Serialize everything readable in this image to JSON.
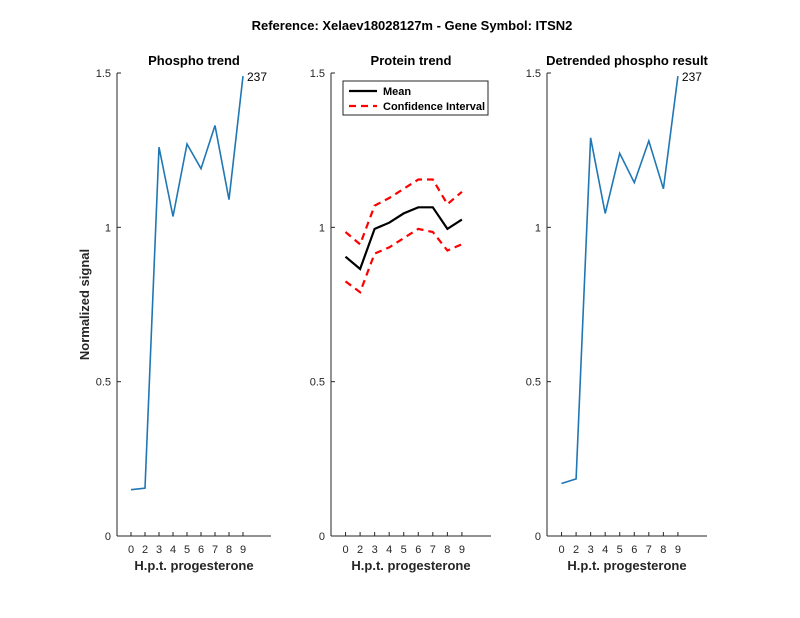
{
  "figure_title": "Reference:  Xelaev18028127m - Gene Symbol:  ITSN2",
  "colors": {
    "blue": "#1f77b4",
    "mean": "#000000",
    "ci": "#ff0000"
  },
  "chart_data": [
    {
      "type": "line",
      "title": "Phospho trend",
      "xlabel": "H.p.t. progesterone",
      "ylabel": "Normalized signal",
      "xlim": [
        -1,
        10
      ],
      "ylim": [
        0,
        1.5
      ],
      "xticks": [
        "0",
        "2",
        "3",
        "4",
        "5",
        "6",
        "7",
        "8",
        "9"
      ],
      "yticks": [
        "0",
        "0.5",
        "1",
        "1.5"
      ],
      "x": [
        0,
        1,
        2,
        3,
        4,
        5,
        6,
        7,
        8
      ],
      "series": [
        {
          "values": [
            0.15,
            0.155,
            1.26,
            1.035,
            1.27,
            1.19,
            1.33,
            1.09,
            1.49
          ],
          "color": "#1f77b4",
          "style": "solid"
        }
      ],
      "annotation": {
        "text": "237",
        "x": 8,
        "y": 1.49
      }
    },
    {
      "type": "line",
      "title": "Protein trend",
      "xlabel": "H.p.t. progesterone",
      "ylabel": "",
      "xlim": [
        -1,
        10
      ],
      "ylim": [
        0,
        1.5
      ],
      "xticks": [
        "0",
        "2",
        "3",
        "4",
        "5",
        "6",
        "7",
        "8",
        "9"
      ],
      "yticks": [
        "0",
        "0.5",
        "1",
        "1.5"
      ],
      "x": [
        0,
        1,
        2,
        3,
        4,
        5,
        6,
        7,
        8
      ],
      "legend": {
        "placement": "top-left",
        "entries": [
          "Mean",
          "Confidence Interval"
        ]
      },
      "series": [
        {
          "name": "Mean",
          "values": [
            0.905,
            0.865,
            0.995,
            1.015,
            1.045,
            1.065,
            1.065,
            0.995,
            1.025
          ],
          "color": "#000000",
          "style": "solid"
        },
        {
          "name": "Confidence Interval",
          "values": [
            0.985,
            0.945,
            1.07,
            1.095,
            1.125,
            1.155,
            1.155,
            1.075,
            1.115
          ],
          "color": "#ff0000",
          "style": "dashed"
        },
        {
          "values": [
            0.825,
            0.79,
            0.915,
            0.935,
            0.965,
            0.995,
            0.985,
            0.925,
            0.945
          ],
          "color": "#ff0000",
          "style": "dashed"
        }
      ]
    },
    {
      "type": "line",
      "title": "Detrended phospho result",
      "xlabel": "H.p.t. progesterone",
      "ylabel": "",
      "xlim": [
        -1,
        10
      ],
      "ylim": [
        0,
        1.5
      ],
      "xticks": [
        "0",
        "2",
        "3",
        "4",
        "5",
        "6",
        "7",
        "8",
        "9"
      ],
      "yticks": [
        "0",
        "0.5",
        "1",
        "1.5"
      ],
      "x": [
        0,
        1,
        2,
        3,
        4,
        5,
        6,
        7,
        8
      ],
      "series": [
        {
          "values": [
            0.17,
            0.185,
            1.29,
            1.045,
            1.24,
            1.145,
            1.28,
            1.125,
            1.49
          ],
          "color": "#1f77b4",
          "style": "solid"
        }
      ],
      "annotation": {
        "text": "237",
        "x": 8,
        "y": 1.49
      }
    }
  ]
}
